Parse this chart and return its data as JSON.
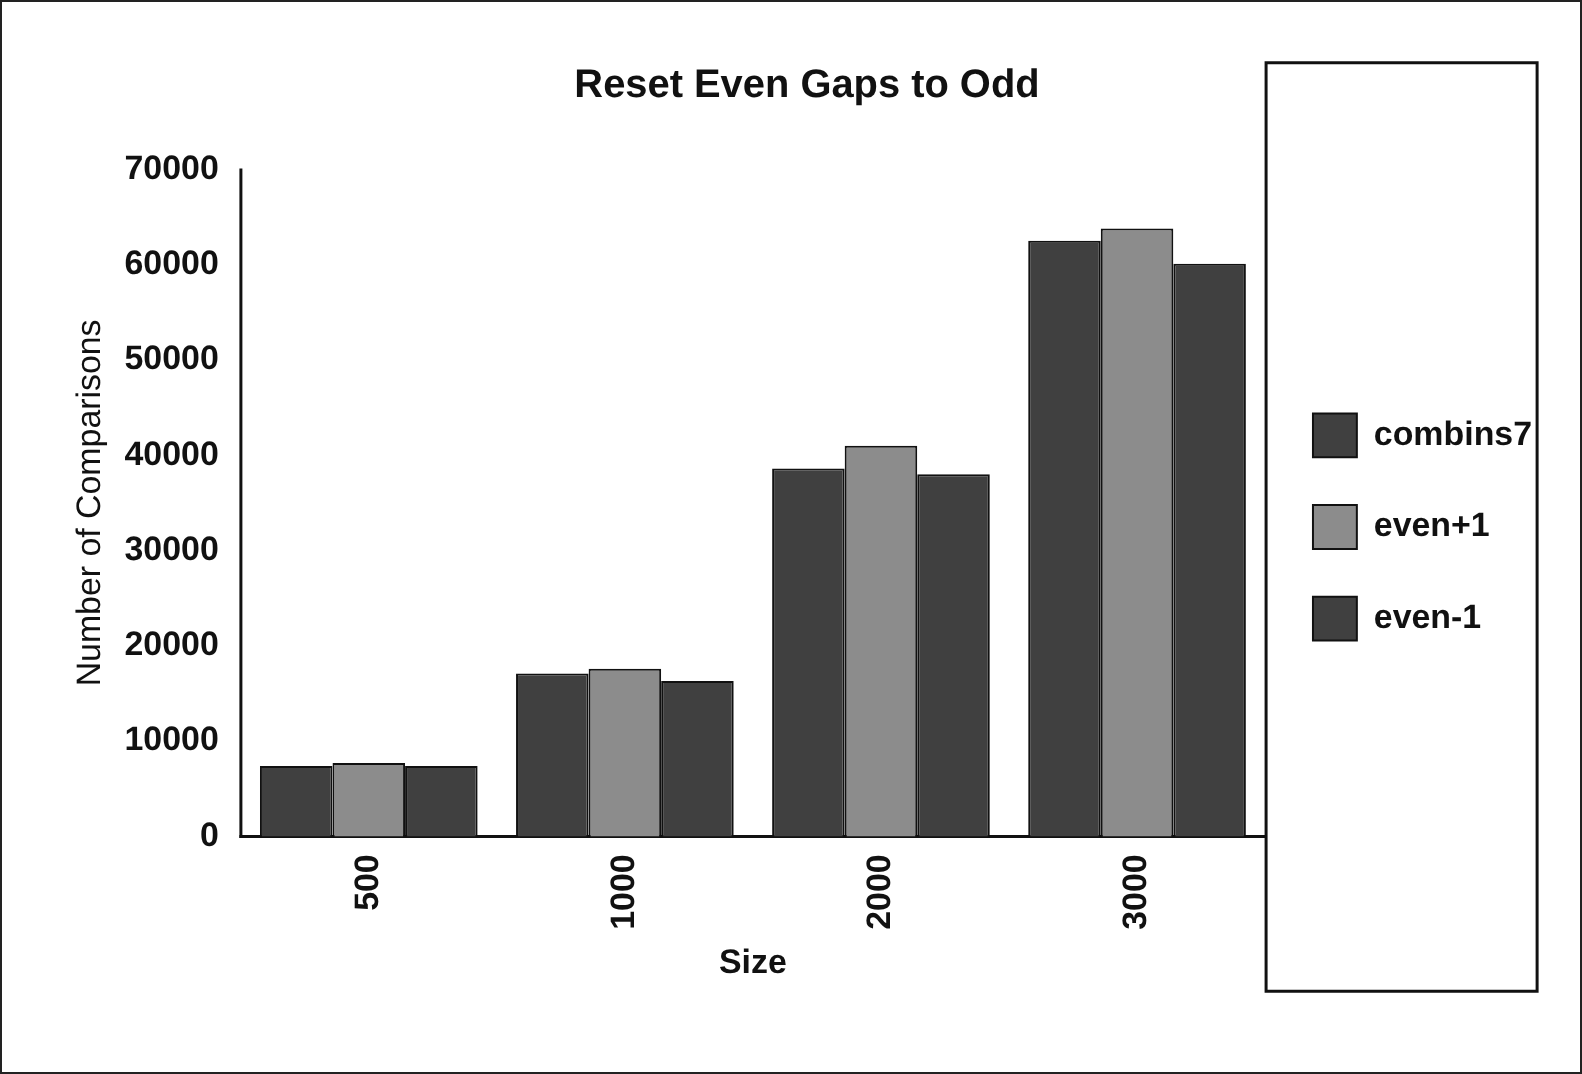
{
  "chart_data": {
    "type": "bar",
    "title": "Reset Even Gaps to Odd",
    "xlabel": "Size",
    "ylabel": "Number of Comparisons",
    "categories": [
      "500",
      "1000",
      "2000",
      "3000"
    ],
    "series": [
      {
        "name": "combins7",
        "color": "#404040",
        "values": [
          7400,
          17100,
          38600,
          62500
        ]
      },
      {
        "name": "even+1",
        "color": "#8c8c8c",
        "values": [
          7700,
          17600,
          41000,
          63800
        ]
      },
      {
        "name": "even-1",
        "color": "#404040",
        "values": [
          7400,
          16300,
          38000,
          60100
        ]
      }
    ],
    "ylim": [
      0,
      70000
    ],
    "yticks": [
      0,
      10000,
      20000,
      30000,
      40000,
      50000,
      60000,
      70000
    ],
    "grid": false,
    "legend": "right"
  }
}
